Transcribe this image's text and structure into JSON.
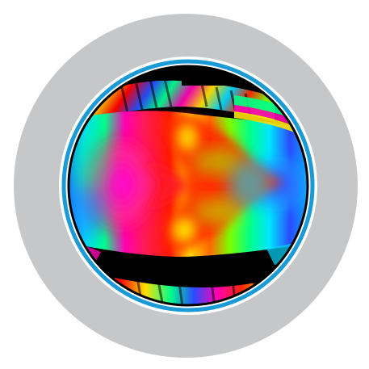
{
  "colors": {
    "background": "#ffffff",
    "outer_ring": "#c6c7c9",
    "inner_ring_gap": "#ffffff",
    "accent_ring": "#1a9ad6",
    "image_border": "#000000"
  },
  "image": {
    "description_icon": "thermal-false-color-lens-icon",
    "palette": [
      "#ff0000",
      "#ff6a00",
      "#ffd800",
      "#7dff00",
      "#00ff8a",
      "#00d9ff",
      "#2a4bff",
      "#ff00b4",
      "#ff2a6a"
    ]
  }
}
